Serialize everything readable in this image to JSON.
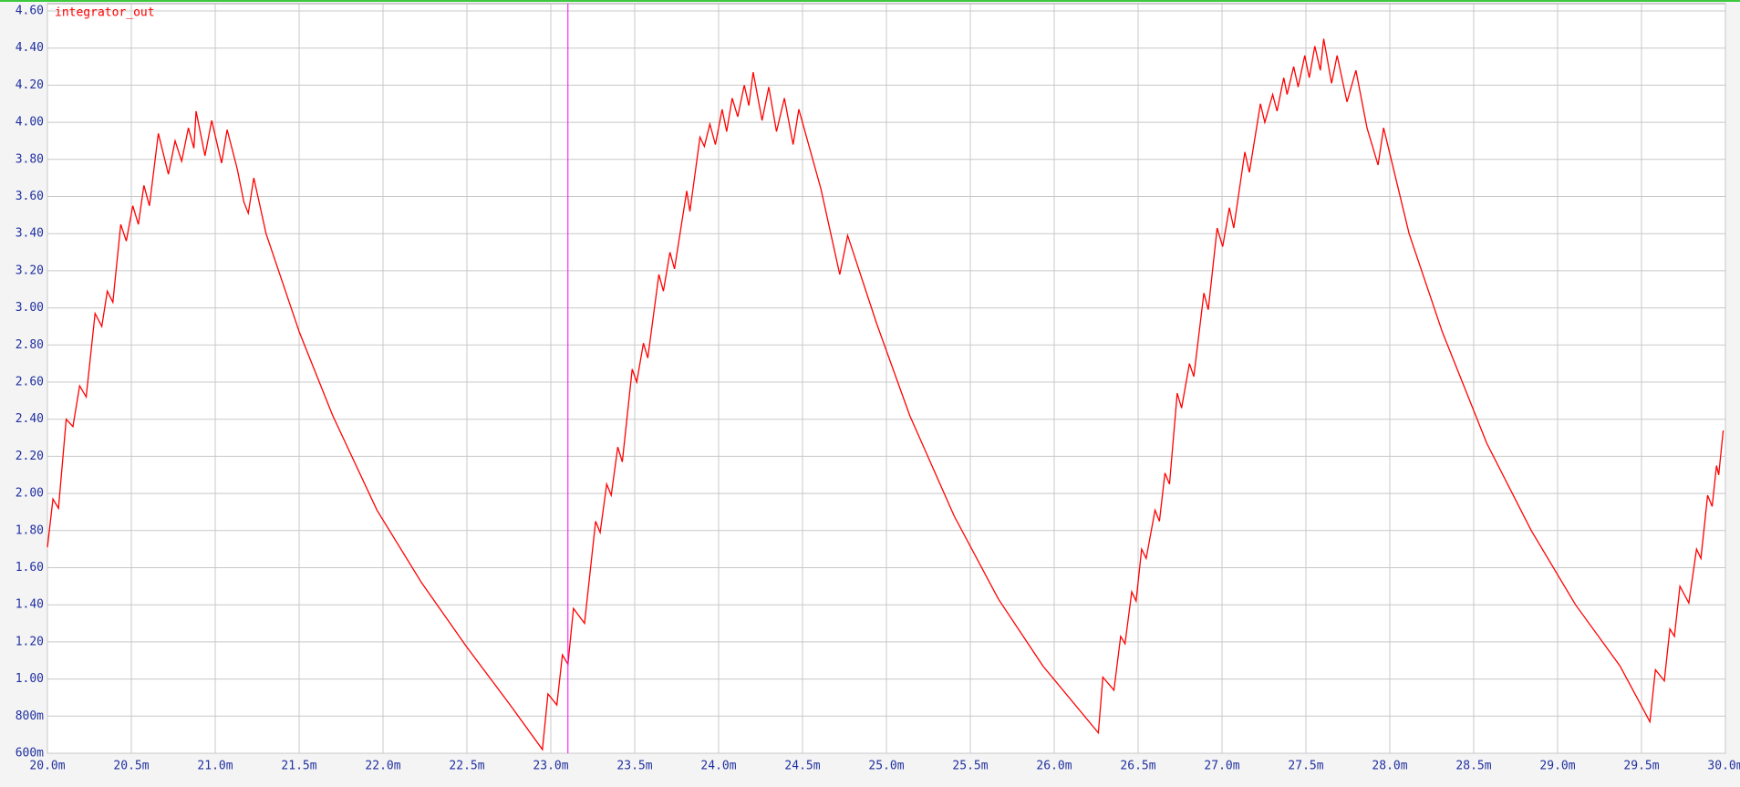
{
  "chart_data": {
    "type": "line",
    "title": "integrator_out",
    "x": [
      0.02,
      0.020033,
      0.020066,
      0.020112,
      0.020152,
      0.020192,
      0.020231,
      0.020284,
      0.020324,
      0.020357,
      0.02039,
      0.020437,
      0.02047,
      0.020509,
      0.020542,
      0.020575,
      0.020608,
      0.020661,
      0.020721,
      0.020761,
      0.0208,
      0.02084,
      0.020873,
      0.020886,
      0.020939,
      0.020979,
      0.021038,
      0.021071,
      0.021131,
      0.021171,
      0.021197,
      0.02123,
      0.021303,
      0.021501,
      0.0217,
      0.021964,
      0.022229,
      0.022493,
      0.022758,
      0.02295,
      0.022983,
      0.023036,
      0.023069,
      0.023102,
      0.023135,
      0.023201,
      0.023267,
      0.023294,
      0.023333,
      0.02336,
      0.023399,
      0.023426,
      0.023485,
      0.023512,
      0.023552,
      0.023578,
      0.023644,
      0.023671,
      0.02371,
      0.023737,
      0.02381,
      0.023829,
      0.023889,
      0.023915,
      0.023948,
      0.023981,
      0.024021,
      0.024048,
      0.024081,
      0.024114,
      0.024153,
      0.02418,
      0.024206,
      0.024259,
      0.024299,
      0.024345,
      0.024392,
      0.024444,
      0.024478,
      0.02461,
      0.024722,
      0.024769,
      0.02494,
      0.025139,
      0.025403,
      0.025668,
      0.025933,
      0.026263,
      0.02629,
      0.026356,
      0.026396,
      0.026422,
      0.026462,
      0.026488,
      0.026521,
      0.026548,
      0.026601,
      0.026627,
      0.02666,
      0.026687,
      0.026733,
      0.026759,
      0.026806,
      0.026832,
      0.026892,
      0.026918,
      0.026971,
      0.027004,
      0.027044,
      0.02707,
      0.027136,
      0.027163,
      0.027229,
      0.027255,
      0.027302,
      0.027328,
      0.027368,
      0.027388,
      0.027427,
      0.027454,
      0.027493,
      0.02752,
      0.027553,
      0.027586,
      0.027606,
      0.027653,
      0.027686,
      0.027745,
      0.027798,
      0.027864,
      0.02793,
      0.027963,
      0.028115,
      0.028313,
      0.028578,
      0.028843,
      0.029107,
      0.029372,
      0.02955,
      0.029583,
      0.029636,
      0.029669,
      0.029696,
      0.029729,
      0.029782,
      0.029828,
      0.029854,
      0.029894,
      0.029921,
      0.029947,
      0.02996,
      0.029987
    ],
    "series": [
      {
        "name": "integrator_out",
        "color": "#ff0000",
        "values": [
          1.71,
          1.97,
          1.92,
          2.4,
          2.36,
          2.58,
          2.52,
          2.97,
          2.9,
          3.09,
          3.03,
          3.45,
          3.36,
          3.55,
          3.45,
          3.66,
          3.55,
          3.94,
          3.72,
          3.9,
          3.79,
          3.97,
          3.86,
          4.06,
          3.82,
          4.01,
          3.78,
          3.96,
          3.75,
          3.57,
          3.51,
          3.7,
          3.4,
          2.87,
          2.42,
          1.91,
          1.52,
          1.18,
          0.86,
          0.62,
          0.92,
          0.86,
          1.13,
          1.08,
          1.38,
          1.3,
          1.85,
          1.79,
          2.05,
          1.99,
          2.25,
          2.17,
          2.67,
          2.6,
          2.81,
          2.73,
          3.18,
          3.09,
          3.3,
          3.21,
          3.63,
          3.52,
          3.92,
          3.87,
          3.99,
          3.88,
          4.07,
          3.95,
          4.13,
          4.03,
          4.2,
          4.09,
          4.27,
          4.01,
          4.19,
          3.95,
          4.13,
          3.88,
          4.07,
          3.64,
          3.18,
          3.39,
          2.92,
          2.42,
          1.88,
          1.43,
          1.07,
          0.71,
          1.01,
          0.94,
          1.23,
          1.19,
          1.47,
          1.42,
          1.7,
          1.65,
          1.91,
          1.85,
          2.11,
          2.05,
          2.54,
          2.46,
          2.7,
          2.63,
          3.08,
          2.99,
          3.43,
          3.33,
          3.54,
          3.43,
          3.84,
          3.73,
          4.1,
          4.0,
          4.15,
          4.06,
          4.24,
          4.15,
          4.3,
          4.19,
          4.36,
          4.24,
          4.41,
          4.28,
          4.45,
          4.21,
          4.36,
          4.11,
          4.28,
          3.97,
          3.77,
          3.97,
          3.4,
          2.87,
          2.27,
          1.8,
          1.4,
          1.07,
          0.77,
          1.05,
          0.99,
          1.27,
          1.23,
          1.5,
          1.41,
          1.7,
          1.65,
          1.99,
          1.93,
          2.15,
          2.1,
          2.34
        ]
      }
    ],
    "xlim": [
      0.02,
      0.03
    ],
    "xticks": [
      {
        "value": 0.02,
        "label": "20.0m"
      },
      {
        "value": 0.0205,
        "label": "20.5m"
      },
      {
        "value": 0.021,
        "label": "21.0m"
      },
      {
        "value": 0.0215,
        "label": "21.5m"
      },
      {
        "value": 0.022,
        "label": "22.0m"
      },
      {
        "value": 0.0225,
        "label": "22.5m"
      },
      {
        "value": 0.023,
        "label": "23.0m"
      },
      {
        "value": 0.0235,
        "label": "23.5m"
      },
      {
        "value": 0.024,
        "label": "24.0m"
      },
      {
        "value": 0.0245,
        "label": "24.5m"
      },
      {
        "value": 0.025,
        "label": "25.0m"
      },
      {
        "value": 0.0255,
        "label": "25.5m"
      },
      {
        "value": 0.026,
        "label": "26.0m"
      },
      {
        "value": 0.0265,
        "label": "26.5m"
      },
      {
        "value": 0.027,
        "label": "27.0m"
      },
      {
        "value": 0.0275,
        "label": "27.5m"
      },
      {
        "value": 0.028,
        "label": "28.0m"
      },
      {
        "value": 0.0285,
        "label": "28.5m"
      },
      {
        "value": 0.029,
        "label": "29.0m"
      },
      {
        "value": 0.0295,
        "label": "29.5m"
      },
      {
        "value": 0.03,
        "label": "30.0m"
      }
    ],
    "ylim": [
      0.6,
      4.6
    ],
    "yticks": [
      {
        "value": 0.6,
        "label": "600m"
      },
      {
        "value": 0.8,
        "label": "800m"
      },
      {
        "value": 1.0,
        "label": "1.00"
      },
      {
        "value": 1.2,
        "label": "1.20"
      },
      {
        "value": 1.4,
        "label": "1.40"
      },
      {
        "value": 1.6,
        "label": "1.60"
      },
      {
        "value": 1.8,
        "label": "1.80"
      },
      {
        "value": 2.0,
        "label": "2.00"
      },
      {
        "value": 2.2,
        "label": "2.20"
      },
      {
        "value": 2.4,
        "label": "2.40"
      },
      {
        "value": 2.6,
        "label": "2.60"
      },
      {
        "value": 2.8,
        "label": "2.80"
      },
      {
        "value": 3.0,
        "label": "3.00"
      },
      {
        "value": 3.2,
        "label": "3.20"
      },
      {
        "value": 3.4,
        "label": "3.40"
      },
      {
        "value": 3.6,
        "label": "3.60"
      },
      {
        "value": 3.8,
        "label": "3.80"
      },
      {
        "value": 4.0,
        "label": "4.00"
      },
      {
        "value": 4.2,
        "label": "4.20"
      },
      {
        "value": 4.4,
        "label": "4.40"
      },
      {
        "value": 4.6,
        "label": "4.60"
      }
    ],
    "grid": true,
    "cursor": 0.023102,
    "cursor_color": "#ff00ff"
  }
}
